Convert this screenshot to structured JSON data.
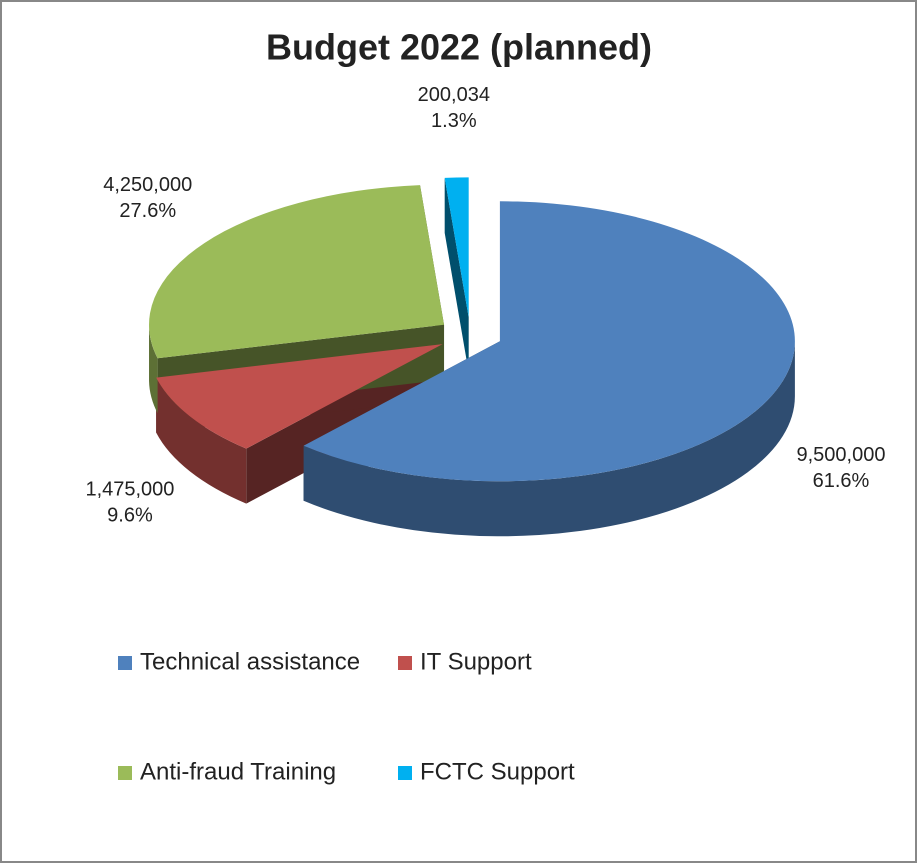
{
  "chart_data": {
    "type": "pie",
    "title": "Budget 2022 (planned)",
    "categories": [
      "Technical assistance",
      "IT Support",
      "Anti-fraud Training",
      "FCTC Support"
    ],
    "values": [
      9500000,
      1475000,
      4250000,
      200034
    ],
    "value_labels": [
      "9,500,000",
      "1,475,000",
      "4,250,000",
      "200,034"
    ],
    "percentages": [
      61.6,
      9.6,
      27.6,
      1.3
    ],
    "percentage_labels": [
      "61.6%",
      "9.6%",
      "27.6%",
      "1.3%"
    ],
    "colors": [
      "#4f81bd",
      "#c0504d",
      "#9bbb59",
      "#00b0f0"
    ],
    "exploded": true,
    "three_d": true
  }
}
